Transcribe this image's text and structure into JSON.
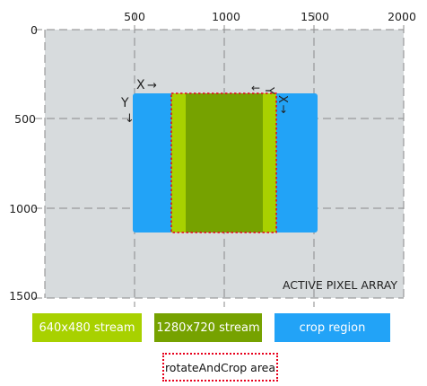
{
  "axes": {
    "x_ticks": [
      "500",
      "1000",
      "1500",
      "2000"
    ],
    "y_ticks": [
      "0",
      "500",
      "1000",
      "1500"
    ]
  },
  "array_label": "ACTIVE PIXEL ARRAY",
  "crop_region": {
    "x_label": "X",
    "x_arrow": "→",
    "y_label": "Y",
    "y_arrow": "↓"
  },
  "rotated_region": {
    "x_label": "X",
    "x_arrow": "↓",
    "y_label": "Y",
    "y_arrow": "←"
  },
  "legend": {
    "stream_640": "640x480 stream",
    "stream_1280": "1280x720 stream",
    "crop": "crop region",
    "rotate_crop": "rotateAndCrop area"
  },
  "colors": {
    "array_bg": "#d7dbdd",
    "crop": "#22a3f7",
    "stream_640": "#a8d100",
    "stream_1280": "#76a200",
    "rotate_border": "#e8001c"
  }
}
